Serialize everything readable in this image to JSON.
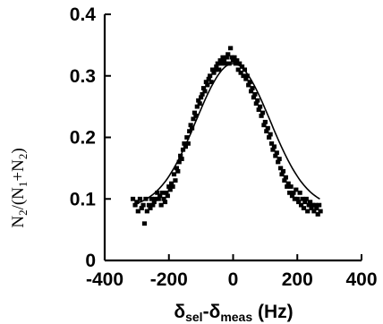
{
  "chart_data": {
    "type": "scatter",
    "title": "",
    "xlabel": {
      "main": "δ",
      "sub1": "sel",
      "dash": "-δ",
      "sub2": "meas",
      "tail": " (Hz)"
    },
    "ylabel": {
      "p1": "N",
      "s1": "2",
      "p2": "/(N",
      "s2": "1",
      "p3": "+N",
      "s3": "2",
      "p4": ")"
    },
    "xlim": [
      -400,
      400
    ],
    "ylim": [
      0,
      0.4
    ],
    "x_ticks": [
      -400,
      -200,
      0,
      200,
      400
    ],
    "x_tick_labels": [
      "-400",
      "-200",
      "0",
      "200",
      "400"
    ],
    "y_ticks": [
      0,
      0.1,
      0.2,
      0.3,
      0.4
    ],
    "y_tick_labels": [
      "0",
      "0.1",
      "0.2",
      "0.3",
      "0.4"
    ],
    "grid": false,
    "series": [
      {
        "kind": "points",
        "x": [
          -312,
          -305,
          -300,
          -296,
          -290,
          -285,
          -280,
          -276,
          -272,
          -268,
          -262,
          -258,
          -254,
          -250,
          -246,
          -242,
          -236,
          -232,
          -228,
          -224,
          -220,
          -216,
          -212,
          -208,
          -204,
          -200,
          -196,
          -192,
          -188,
          -184,
          -180,
          -176,
          -172,
          -168,
          -164,
          -160,
          -156,
          -152,
          -148,
          -144,
          -140,
          -136,
          -132,
          -128,
          -124,
          -120,
          -116,
          -112,
          -108,
          -104,
          -100,
          -96,
          -92,
          -88,
          -84,
          -80,
          -76,
          -72,
          -68,
          -64,
          -60,
          -56,
          -52,
          -48,
          -44,
          -40,
          -36,
          -32,
          -28,
          -24,
          -20,
          -16,
          -12,
          -8,
          -4,
          0,
          4,
          8,
          12,
          16,
          20,
          24,
          28,
          32,
          36,
          40,
          44,
          48,
          52,
          56,
          60,
          64,
          68,
          72,
          76,
          80,
          84,
          88,
          92,
          96,
          100,
          104,
          108,
          112,
          116,
          120,
          124,
          128,
          132,
          136,
          140,
          144,
          148,
          152,
          156,
          160,
          164,
          168,
          172,
          176,
          180,
          184,
          188,
          192,
          196,
          200,
          204,
          208,
          212,
          216,
          220,
          224,
          228,
          232,
          236,
          240,
          244,
          248,
          252,
          256,
          260,
          264,
          268,
          272
        ],
        "y": [
          0.1,
          0.09,
          0.095,
          0.08,
          0.1,
          0.085,
          0.09,
          0.06,
          0.1,
          0.08,
          0.09,
          0.085,
          0.1,
          0.09,
          0.095,
          0.1,
          0.11,
          0.1,
          0.105,
          0.09,
          0.11,
          0.1,
          0.095,
          0.11,
          0.105,
          0.12,
          0.115,
          0.125,
          0.12,
          0.14,
          0.13,
          0.15,
          0.145,
          0.16,
          0.17,
          0.165,
          0.18,
          0.19,
          0.185,
          0.2,
          0.19,
          0.21,
          0.22,
          0.215,
          0.23,
          0.24,
          0.235,
          0.25,
          0.26,
          0.255,
          0.265,
          0.27,
          0.28,
          0.275,
          0.29,
          0.285,
          0.295,
          0.3,
          0.29,
          0.31,
          0.305,
          0.31,
          0.315,
          0.32,
          0.31,
          0.325,
          0.32,
          0.33,
          0.325,
          0.32,
          0.33,
          0.335,
          0.32,
          0.345,
          0.33,
          0.325,
          0.33,
          0.32,
          0.325,
          0.31,
          0.32,
          0.305,
          0.315,
          0.3,
          0.31,
          0.295,
          0.3,
          0.285,
          0.29,
          0.275,
          0.28,
          0.265,
          0.27,
          0.255,
          0.26,
          0.245,
          0.25,
          0.235,
          0.24,
          0.22,
          0.225,
          0.21,
          0.215,
          0.2,
          0.205,
          0.19,
          0.18,
          0.185,
          0.17,
          0.175,
          0.16,
          0.165,
          0.15,
          0.14,
          0.145,
          0.13,
          0.135,
          0.12,
          0.125,
          0.11,
          0.12,
          0.105,
          0.11,
          0.1,
          0.115,
          0.1,
          0.095,
          0.11,
          0.09,
          0.1,
          0.085,
          0.095,
          0.1,
          0.08,
          0.09,
          0.095,
          0.085,
          0.09,
          0.08,
          0.09,
          0.085,
          0.075,
          0.09,
          0.08
        ]
      },
      {
        "kind": "fit_line",
        "function": "gaussian",
        "baseline": 0.085,
        "amplitude": 0.235,
        "center": 0,
        "sigma": 115
      }
    ]
  }
}
